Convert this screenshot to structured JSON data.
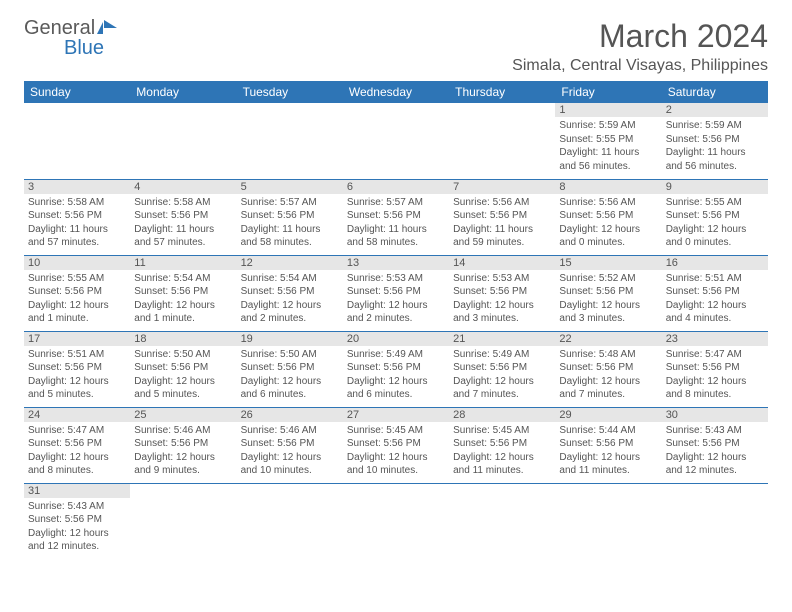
{
  "logo": {
    "general": "General",
    "blue": "Blue"
  },
  "monthTitle": "March 2024",
  "location": "Simala, Central Visayas, Philippines",
  "colors": {
    "headerBg": "#2e75b6",
    "headerText": "#ffffff",
    "bodyText": "#555555",
    "dayNumBg": "#e6e6e6",
    "rowBorder": "#2e75b6",
    "pageBg": "#ffffff"
  },
  "weekdays": [
    "Sunday",
    "Monday",
    "Tuesday",
    "Wednesday",
    "Thursday",
    "Friday",
    "Saturday"
  ],
  "weeks": [
    [
      null,
      null,
      null,
      null,
      null,
      {
        "n": "1",
        "sr": "Sunrise: 5:59 AM",
        "ss": "Sunset: 5:55 PM",
        "dl": "Daylight: 11 hours and 56 minutes."
      },
      {
        "n": "2",
        "sr": "Sunrise: 5:59 AM",
        "ss": "Sunset: 5:56 PM",
        "dl": "Daylight: 11 hours and 56 minutes."
      }
    ],
    [
      {
        "n": "3",
        "sr": "Sunrise: 5:58 AM",
        "ss": "Sunset: 5:56 PM",
        "dl": "Daylight: 11 hours and 57 minutes."
      },
      {
        "n": "4",
        "sr": "Sunrise: 5:58 AM",
        "ss": "Sunset: 5:56 PM",
        "dl": "Daylight: 11 hours and 57 minutes."
      },
      {
        "n": "5",
        "sr": "Sunrise: 5:57 AM",
        "ss": "Sunset: 5:56 PM",
        "dl": "Daylight: 11 hours and 58 minutes."
      },
      {
        "n": "6",
        "sr": "Sunrise: 5:57 AM",
        "ss": "Sunset: 5:56 PM",
        "dl": "Daylight: 11 hours and 58 minutes."
      },
      {
        "n": "7",
        "sr": "Sunrise: 5:56 AM",
        "ss": "Sunset: 5:56 PM",
        "dl": "Daylight: 11 hours and 59 minutes."
      },
      {
        "n": "8",
        "sr": "Sunrise: 5:56 AM",
        "ss": "Sunset: 5:56 PM",
        "dl": "Daylight: 12 hours and 0 minutes."
      },
      {
        "n": "9",
        "sr": "Sunrise: 5:55 AM",
        "ss": "Sunset: 5:56 PM",
        "dl": "Daylight: 12 hours and 0 minutes."
      }
    ],
    [
      {
        "n": "10",
        "sr": "Sunrise: 5:55 AM",
        "ss": "Sunset: 5:56 PM",
        "dl": "Daylight: 12 hours and 1 minute."
      },
      {
        "n": "11",
        "sr": "Sunrise: 5:54 AM",
        "ss": "Sunset: 5:56 PM",
        "dl": "Daylight: 12 hours and 1 minute."
      },
      {
        "n": "12",
        "sr": "Sunrise: 5:54 AM",
        "ss": "Sunset: 5:56 PM",
        "dl": "Daylight: 12 hours and 2 minutes."
      },
      {
        "n": "13",
        "sr": "Sunrise: 5:53 AM",
        "ss": "Sunset: 5:56 PM",
        "dl": "Daylight: 12 hours and 2 minutes."
      },
      {
        "n": "14",
        "sr": "Sunrise: 5:53 AM",
        "ss": "Sunset: 5:56 PM",
        "dl": "Daylight: 12 hours and 3 minutes."
      },
      {
        "n": "15",
        "sr": "Sunrise: 5:52 AM",
        "ss": "Sunset: 5:56 PM",
        "dl": "Daylight: 12 hours and 3 minutes."
      },
      {
        "n": "16",
        "sr": "Sunrise: 5:51 AM",
        "ss": "Sunset: 5:56 PM",
        "dl": "Daylight: 12 hours and 4 minutes."
      }
    ],
    [
      {
        "n": "17",
        "sr": "Sunrise: 5:51 AM",
        "ss": "Sunset: 5:56 PM",
        "dl": "Daylight: 12 hours and 5 minutes."
      },
      {
        "n": "18",
        "sr": "Sunrise: 5:50 AM",
        "ss": "Sunset: 5:56 PM",
        "dl": "Daylight: 12 hours and 5 minutes."
      },
      {
        "n": "19",
        "sr": "Sunrise: 5:50 AM",
        "ss": "Sunset: 5:56 PM",
        "dl": "Daylight: 12 hours and 6 minutes."
      },
      {
        "n": "20",
        "sr": "Sunrise: 5:49 AM",
        "ss": "Sunset: 5:56 PM",
        "dl": "Daylight: 12 hours and 6 minutes."
      },
      {
        "n": "21",
        "sr": "Sunrise: 5:49 AM",
        "ss": "Sunset: 5:56 PM",
        "dl": "Daylight: 12 hours and 7 minutes."
      },
      {
        "n": "22",
        "sr": "Sunrise: 5:48 AM",
        "ss": "Sunset: 5:56 PM",
        "dl": "Daylight: 12 hours and 7 minutes."
      },
      {
        "n": "23",
        "sr": "Sunrise: 5:47 AM",
        "ss": "Sunset: 5:56 PM",
        "dl": "Daylight: 12 hours and 8 minutes."
      }
    ],
    [
      {
        "n": "24",
        "sr": "Sunrise: 5:47 AM",
        "ss": "Sunset: 5:56 PM",
        "dl": "Daylight: 12 hours and 8 minutes."
      },
      {
        "n": "25",
        "sr": "Sunrise: 5:46 AM",
        "ss": "Sunset: 5:56 PM",
        "dl": "Daylight: 12 hours and 9 minutes."
      },
      {
        "n": "26",
        "sr": "Sunrise: 5:46 AM",
        "ss": "Sunset: 5:56 PM",
        "dl": "Daylight: 12 hours and 10 minutes."
      },
      {
        "n": "27",
        "sr": "Sunrise: 5:45 AM",
        "ss": "Sunset: 5:56 PM",
        "dl": "Daylight: 12 hours and 10 minutes."
      },
      {
        "n": "28",
        "sr": "Sunrise: 5:45 AM",
        "ss": "Sunset: 5:56 PM",
        "dl": "Daylight: 12 hours and 11 minutes."
      },
      {
        "n": "29",
        "sr": "Sunrise: 5:44 AM",
        "ss": "Sunset: 5:56 PM",
        "dl": "Daylight: 12 hours and 11 minutes."
      },
      {
        "n": "30",
        "sr": "Sunrise: 5:43 AM",
        "ss": "Sunset: 5:56 PM",
        "dl": "Daylight: 12 hours and 12 minutes."
      }
    ],
    [
      {
        "n": "31",
        "sr": "Sunrise: 5:43 AM",
        "ss": "Sunset: 5:56 PM",
        "dl": "Daylight: 12 hours and 12 minutes."
      },
      null,
      null,
      null,
      null,
      null,
      null
    ]
  ]
}
